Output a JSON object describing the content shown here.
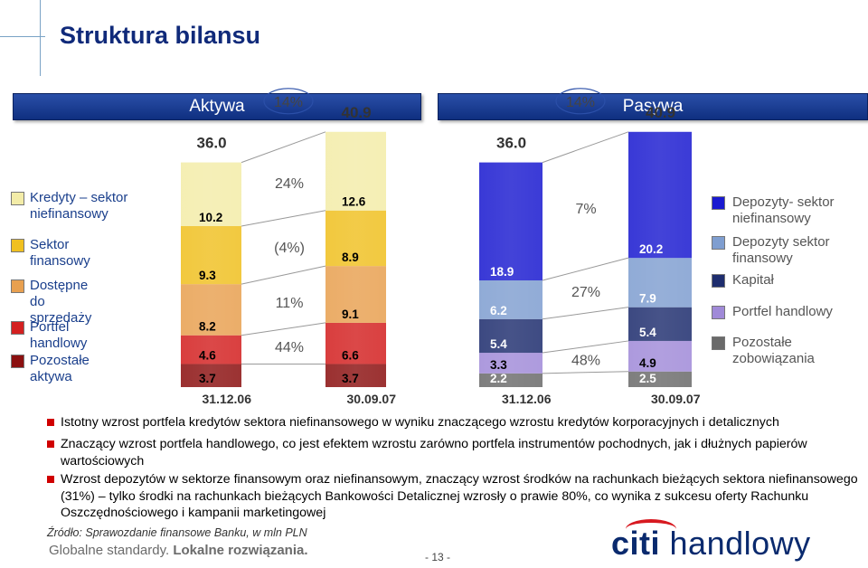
{
  "page": {
    "title": "Struktura bilansu",
    "assets_header": "Aktywa",
    "liabilities_header": "Pasywa",
    "bullets": [
      "Istotny wzrost portfela kredytów sektora niefinansowego w wyniku znaczącego wzrostu kredytów korporacyjnych i detalicznych",
      "Znaczący wzrost portfela handlowego, co jest efektem wzrostu zarówno portfela instrumentów pochodnych, jak i dłużnych papierów wartościowych",
      "Wzrost depozytów w sektorze finansowym oraz niefinansowym, znaczący wzrost środków na rachunkach bieżących sektora niefinansowego (31%) – tylko środki na rachunkach bieżących Bankowości Detalicznej wzrosły o prawie 80%, co wynika z sukcesu oferty Rachunku Oszczędnościowego i kampanii marketingowej"
    ],
    "source": "Źródło: Sprawozdanie finansowe Banku, w mln PLN",
    "slogan_part1": "Globalne standardy.",
    "slogan_part2": "Lokalne rozwiązania.",
    "page_number": "- 13 -",
    "logo_citi": "citi",
    "logo_handlowy": "handlowy"
  },
  "colors": {
    "title": "#102a7a",
    "header_bar": "#1a3f94",
    "bullet": "#d00000",
    "logo_arc": "#d71920"
  },
  "chart_data": [
    {
      "type": "bar",
      "stacked": true,
      "name": "Aktywa",
      "categories": [
        "31.12.06",
        "30.09.07"
      ],
      "totals": [
        "36.0",
        "40.9"
      ],
      "total_change": "14%",
      "series": [
        {
          "name": "Pozostałe aktywa",
          "color": "#8b1010",
          "values": [
            3.7,
            3.7
          ],
          "labels": [
            "3.7",
            "3.7"
          ],
          "change": ""
        },
        {
          "name": "Portfel handlowy",
          "color": "#d32020",
          "values": [
            4.6,
            6.6
          ],
          "labels": [
            "4.6",
            "6.6"
          ],
          "change": "44%"
        },
        {
          "name": "Dostępne do sprzedaży",
          "color": "#e8a050",
          "values": [
            8.2,
            9.1
          ],
          "labels": [
            "8.2",
            "9.1"
          ],
          "change": "11%"
        },
        {
          "name": "Sektor finansowy",
          "color": "#f0c020",
          "values": [
            9.3,
            8.9
          ],
          "labels": [
            "9.3",
            "8.9"
          ],
          "change": "(4%)"
        },
        {
          "name": "Kredyty – sektor niefinansowy",
          "color": "#f3eca8",
          "values": [
            10.2,
            12.6
          ],
          "labels": [
            "10.2",
            "12.6"
          ],
          "change": "24%"
        }
      ]
    },
    {
      "type": "bar",
      "stacked": true,
      "name": "Pasywa",
      "categories": [
        "31.12.06",
        "30.09.07"
      ],
      "totals": [
        "36.0",
        "40.9"
      ],
      "total_change": "14%",
      "series": [
        {
          "name": "Pozostałe zobowiązania",
          "color": "#6a6a6a",
          "values": [
            2.2,
            2.5
          ],
          "labels": [
            "2.2",
            "2.5"
          ],
          "change": ""
        },
        {
          "name": "Portfel handlowy",
          "color": "#a08ad8",
          "values": [
            3.3,
            4.9
          ],
          "labels": [
            "3.3",
            "4.9"
          ],
          "change": "48%"
        },
        {
          "name": "Kapitał",
          "color": "#1e2d6e",
          "values": [
            5.4,
            5.4
          ],
          "labels": [
            "5.4",
            "5.4"
          ],
          "change": ""
        },
        {
          "name": "Depozyty sektor finansowy",
          "color": "#7f9ed0",
          "values": [
            6.2,
            7.9
          ],
          "labels": [
            "6.2",
            "7.9"
          ],
          "change": "27%"
        },
        {
          "name": "Depozyty- sektor niefinansowy",
          "color": "#1a1ad0",
          "values": [
            18.9,
            20.2
          ],
          "labels": [
            "18.9",
            "20.2"
          ],
          "change": "7%"
        }
      ]
    }
  ],
  "legend_left": [
    {
      "label": "Kredyty – sektor niefinansowy",
      "color": "#f3eca8"
    },
    {
      "label": "Sektor finansowy",
      "color": "#f0c020"
    },
    {
      "label": "Dostępne do sprzedaży",
      "color": "#e8a050"
    },
    {
      "label": "Portfel handlowy",
      "color": "#d32020"
    },
    {
      "label": "Pozostałe aktywa",
      "color": "#8b1010"
    }
  ],
  "legend_right": [
    {
      "label": "Depozyty- sektor niefinansowy",
      "color": "#1a1ad0"
    },
    {
      "label": "Depozyty sektor finansowy",
      "color": "#7f9ed0"
    },
    {
      "label": "Kapitał",
      "color": "#1e2d6e"
    },
    {
      "label": "Portfel handlowy",
      "color": "#a08ad8"
    },
    {
      "label": "Pozostałe zobowiązania",
      "color": "#6a6a6a"
    }
  ]
}
